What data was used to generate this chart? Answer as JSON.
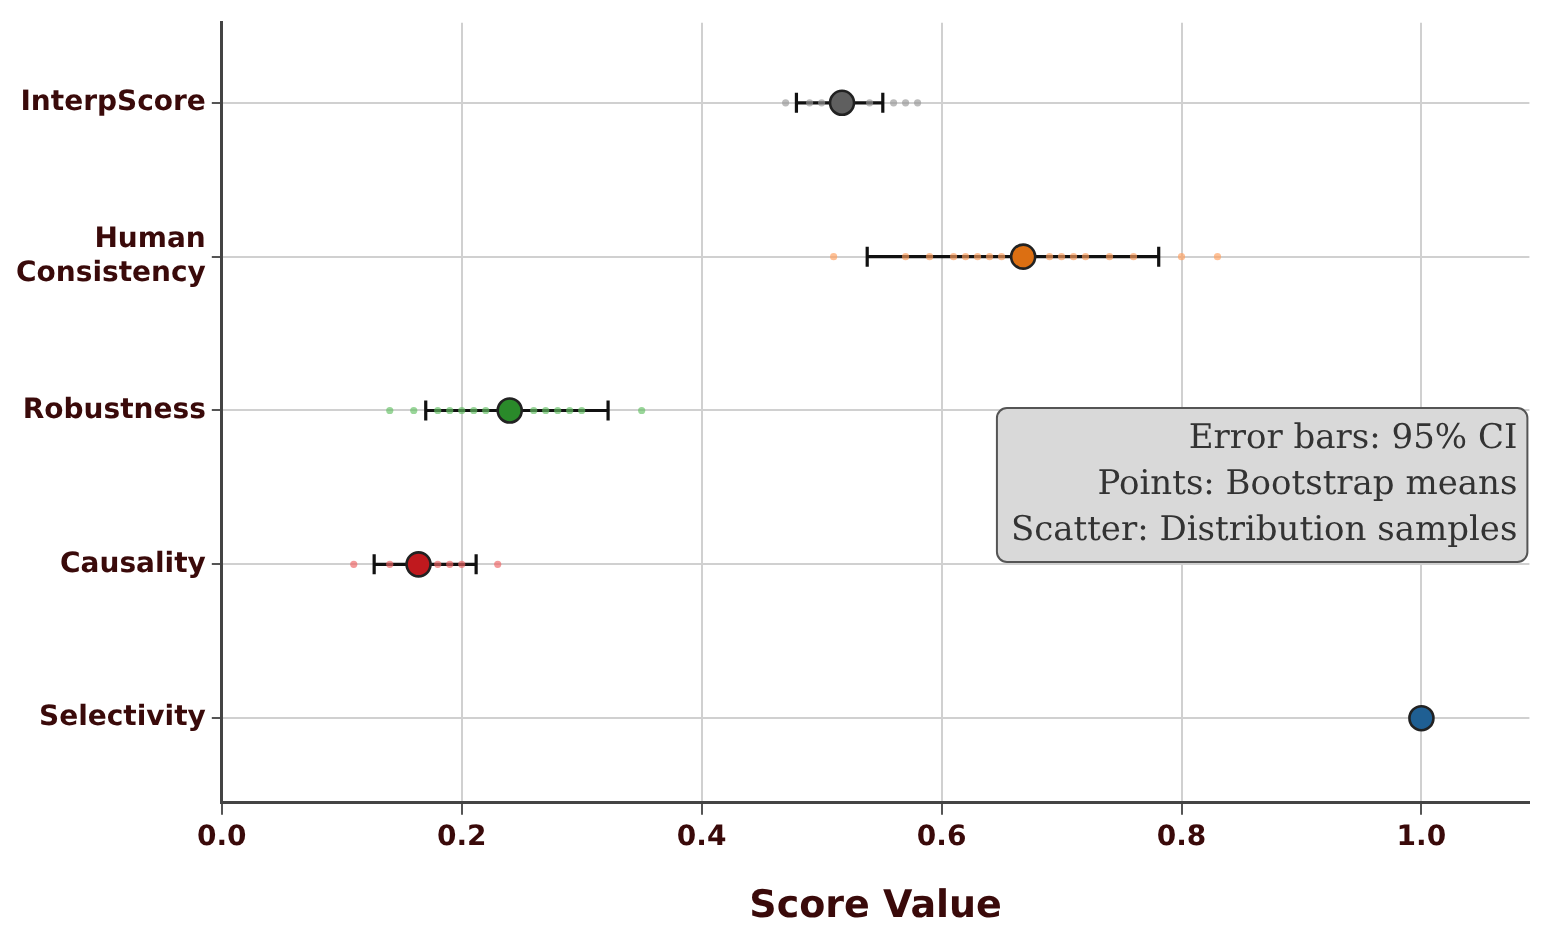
{
  "chart_data": {
    "type": "scatter",
    "orientation": "horizontal",
    "xlabel": "Score Value",
    "categories": [
      "InterpScore",
      "Human Consistency",
      "Robustness",
      "Causality",
      "Selectivity"
    ],
    "xlim": [
      0,
      1.09
    ],
    "xticks": [
      {
        "value": 0,
        "label": "0.0"
      },
      0.2,
      0.4,
      0.6,
      0.8,
      {
        "value": 1,
        "label": "1.0"
      }
    ],
    "grid": true,
    "legend": false,
    "marker": "circle",
    "annotations": [
      "Error bars: 95% CI",
      "Points: Bootstrap means",
      "Scatter: Distribution samples"
    ],
    "series": [
      {
        "type": "scatter",
        "color": "#999999",
        "x": [
          "InterpScore",
          "InterpScore",
          "InterpScore",
          "InterpScore",
          "InterpScore",
          "InterpScore",
          "InterpScore"
        ],
        "values": [
          0.47,
          0.49,
          0.5,
          0.54,
          0.56,
          0.57,
          0.58
        ]
      },
      {
        "type": "scatter",
        "color": "#ffa060",
        "x": [
          "Human Consistency",
          "Human Consistency",
          "Human Consistency",
          "Human Consistency",
          "Human Consistency",
          "Human Consistency",
          "Human Consistency",
          "Human Consistency",
          "Human Consistency",
          "Human Consistency",
          "Human Consistency",
          "Human Consistency",
          "Human Consistency",
          "Human Consistency",
          "Human Consistency",
          "Human Consistency"
        ],
        "values": [
          0.51,
          0.57,
          0.59,
          0.61,
          0.62,
          0.63,
          0.64,
          0.65,
          0.69,
          0.7,
          0.71,
          0.72,
          0.74,
          0.76,
          0.8,
          0.83
        ]
      },
      {
        "type": "scatter",
        "color": "#66c266",
        "x": [
          "Robustness",
          "Robustness",
          "Robustness",
          "Robustness",
          "Robustness",
          "Robustness",
          "Robustness",
          "Robustness",
          "Robustness",
          "Robustness",
          "Robustness",
          "Robustness",
          "Robustness"
        ],
        "values": [
          0.14,
          0.16,
          0.18,
          0.19,
          0.2,
          0.21,
          0.22,
          0.26,
          0.27,
          0.28,
          0.29,
          0.3,
          0.35
        ]
      },
      {
        "type": "scatter",
        "color": "#ee6666",
        "x": [
          "Causality",
          "Causality",
          "Causality",
          "Causality",
          "Causality",
          "Causality"
        ],
        "values": [
          0.11,
          0.14,
          0.18,
          0.19,
          0.2,
          0.23
        ]
      },
      {
        "type": "scatter",
        "colors": [
          "#5f5f5f",
          "#dc6f12",
          "#2a8a2a",
          "#c0191e",
          "#1f5f93"
        ],
        "values": [
          0.517,
          0.668,
          0.24,
          0.164,
          1
        ],
        "errors": [
          [
            0.479,
            0.551
          ],
          [
            0.538,
            0.781
          ],
          [
            0.17,
            0.322
          ],
          [
            0.127,
            0.212
          ],
          null
        ]
      }
    ]
  }
}
